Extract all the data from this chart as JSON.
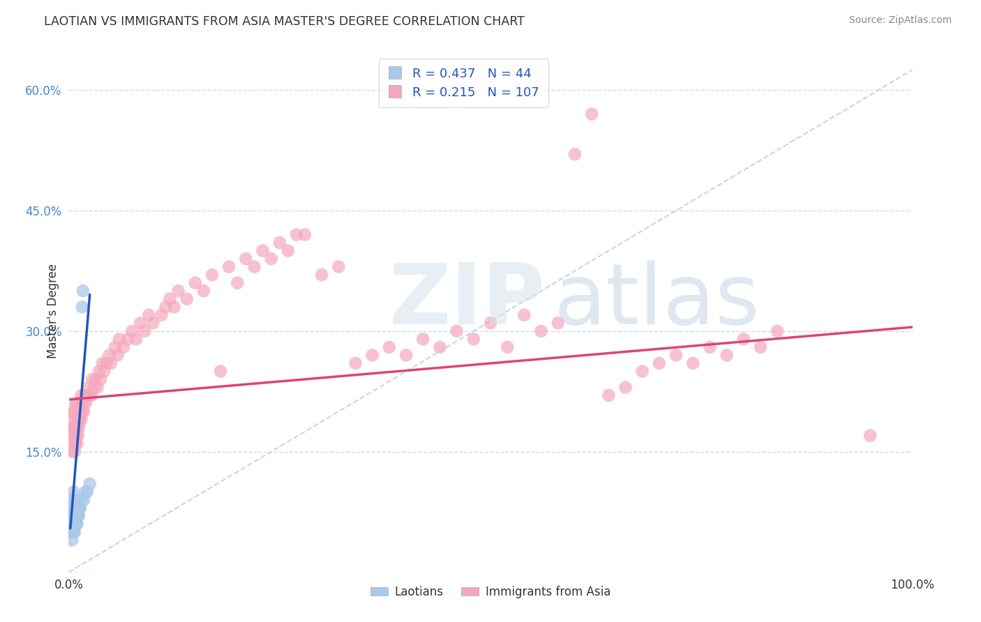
{
  "title": "LAOTIAN VS IMMIGRANTS FROM ASIA MASTER'S DEGREE CORRELATION CHART",
  "source_text": "Source: ZipAtlas.com",
  "ylabel": "Master's Degree",
  "xlim": [
    0.0,
    1.0
  ],
  "ylim": [
    0.0,
    0.65
  ],
  "x_ticks": [
    0.0,
    1.0
  ],
  "x_tick_labels": [
    "0.0%",
    "100.0%"
  ],
  "y_ticks": [
    0.15,
    0.3,
    0.45,
    0.6
  ],
  "y_tick_labels": [
    "15.0%",
    "30.0%",
    "45.0%",
    "60.0%"
  ],
  "watermark_zip": "ZIP",
  "watermark_atlas": "atlas",
  "legend_R1": "0.437",
  "legend_N1": "44",
  "legend_R2": "0.215",
  "legend_N2": "107",
  "scatter_blue_x": [
    0.002,
    0.003,
    0.003,
    0.004,
    0.004,
    0.004,
    0.004,
    0.005,
    0.005,
    0.005,
    0.005,
    0.005,
    0.006,
    0.006,
    0.006,
    0.006,
    0.006,
    0.007,
    0.007,
    0.007,
    0.007,
    0.008,
    0.008,
    0.008,
    0.008,
    0.009,
    0.009,
    0.009,
    0.01,
    0.01,
    0.01,
    0.011,
    0.011,
    0.012,
    0.012,
    0.013,
    0.014,
    0.015,
    0.016,
    0.017,
    0.018,
    0.02,
    0.022,
    0.025
  ],
  "scatter_blue_y": [
    0.05,
    0.06,
    0.07,
    0.04,
    0.06,
    0.07,
    0.08,
    0.05,
    0.06,
    0.07,
    0.08,
    0.09,
    0.05,
    0.06,
    0.07,
    0.08,
    0.1,
    0.05,
    0.06,
    0.07,
    0.08,
    0.06,
    0.07,
    0.08,
    0.09,
    0.06,
    0.07,
    0.08,
    0.06,
    0.07,
    0.08,
    0.07,
    0.08,
    0.07,
    0.08,
    0.08,
    0.08,
    0.09,
    0.33,
    0.35,
    0.09,
    0.1,
    0.1,
    0.11
  ],
  "scatter_pink_x": [
    0.003,
    0.004,
    0.005,
    0.005,
    0.006,
    0.006,
    0.006,
    0.007,
    0.007,
    0.007,
    0.008,
    0.008,
    0.008,
    0.009,
    0.009,
    0.01,
    0.01,
    0.01,
    0.011,
    0.011,
    0.012,
    0.012,
    0.013,
    0.013,
    0.014,
    0.015,
    0.015,
    0.016,
    0.017,
    0.018,
    0.019,
    0.02,
    0.022,
    0.024,
    0.025,
    0.027,
    0.028,
    0.03,
    0.032,
    0.034,
    0.036,
    0.038,
    0.04,
    0.042,
    0.045,
    0.048,
    0.05,
    0.055,
    0.058,
    0.06,
    0.065,
    0.07,
    0.075,
    0.08,
    0.085,
    0.09,
    0.095,
    0.1,
    0.11,
    0.115,
    0.12,
    0.125,
    0.13,
    0.14,
    0.15,
    0.16,
    0.17,
    0.18,
    0.19,
    0.2,
    0.21,
    0.22,
    0.23,
    0.24,
    0.25,
    0.26,
    0.27,
    0.28,
    0.3,
    0.32,
    0.34,
    0.36,
    0.38,
    0.4,
    0.42,
    0.44,
    0.46,
    0.48,
    0.5,
    0.52,
    0.54,
    0.56,
    0.58,
    0.6,
    0.62,
    0.64,
    0.66,
    0.68,
    0.7,
    0.72,
    0.74,
    0.76,
    0.78,
    0.8,
    0.82,
    0.84,
    0.95
  ],
  "scatter_pink_y": [
    0.17,
    0.19,
    0.15,
    0.18,
    0.16,
    0.18,
    0.2,
    0.15,
    0.17,
    0.2,
    0.16,
    0.18,
    0.21,
    0.17,
    0.19,
    0.16,
    0.18,
    0.21,
    0.17,
    0.19,
    0.18,
    0.2,
    0.19,
    0.21,
    0.2,
    0.19,
    0.22,
    0.2,
    0.21,
    0.2,
    0.22,
    0.21,
    0.22,
    0.23,
    0.22,
    0.22,
    0.24,
    0.23,
    0.24,
    0.23,
    0.25,
    0.24,
    0.26,
    0.25,
    0.26,
    0.27,
    0.26,
    0.28,
    0.27,
    0.29,
    0.28,
    0.29,
    0.3,
    0.29,
    0.31,
    0.3,
    0.32,
    0.31,
    0.32,
    0.33,
    0.34,
    0.33,
    0.35,
    0.34,
    0.36,
    0.35,
    0.37,
    0.25,
    0.38,
    0.36,
    0.39,
    0.38,
    0.4,
    0.39,
    0.41,
    0.4,
    0.42,
    0.42,
    0.37,
    0.38,
    0.26,
    0.27,
    0.28,
    0.27,
    0.29,
    0.28,
    0.3,
    0.29,
    0.31,
    0.28,
    0.32,
    0.3,
    0.31,
    0.52,
    0.57,
    0.22,
    0.23,
    0.25,
    0.26,
    0.27,
    0.26,
    0.28,
    0.27,
    0.29,
    0.28,
    0.3,
    0.17
  ],
  "blue_line_x": [
    0.002,
    0.025
  ],
  "blue_line_y": [
    0.055,
    0.345
  ],
  "pink_line_x": [
    0.002,
    1.0
  ],
  "pink_line_y": [
    0.215,
    0.305
  ],
  "dashed_line_x": [
    0.0,
    1.0
  ],
  "dashed_line_y": [
    0.0,
    0.625
  ],
  "blue_dot_color": "#aac8e8",
  "pink_dot_color": "#f5a8bc",
  "blue_line_color": "#2255bb",
  "pink_line_color": "#dd4477",
  "dashed_line_color": "#b8ccd8",
  "background_color": "#ffffff",
  "grid_color": "#d0dce8"
}
